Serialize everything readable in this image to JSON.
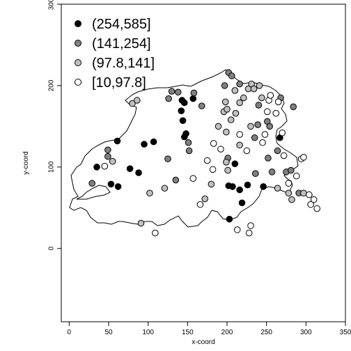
{
  "chart_data": {
    "type": "scatter",
    "title": "",
    "xlabel": "x-coord",
    "ylabel": "y-coord",
    "xlim": [
      -10,
      350
    ],
    "ylim": [
      -90,
      300
    ],
    "xticks": [
      0,
      50,
      100,
      150,
      200,
      250,
      300,
      350
    ],
    "yticks": [
      0,
      100,
      200,
      300
    ],
    "grid": false,
    "legend_position": "top-left",
    "series": [
      {
        "name": "(254,585]",
        "color": "#000000",
        "points": [
          [
            35,
            100
          ],
          [
            61,
            132
          ],
          [
            77,
            98
          ],
          [
            88,
            93
          ],
          [
            95,
            128
          ],
          [
            107,
            131
          ],
          [
            53,
            79
          ],
          [
            62,
            76
          ],
          [
            143,
            182
          ],
          [
            157,
            184
          ],
          [
            142,
            169
          ],
          [
            144,
            157
          ],
          [
            148,
            141
          ],
          [
            146,
            137
          ],
          [
            202,
            77
          ],
          [
            207,
            76
          ],
          [
            210,
            104
          ],
          [
            216,
            72
          ],
          [
            219,
            56
          ],
          [
            226,
            78
          ],
          [
            246,
            76
          ],
          [
            203,
            36
          ],
          [
            267,
            136
          ],
          [
            146,
            179
          ]
        ]
      },
      {
        "name": "(141,254]",
        "color": "#808080",
        "points": [
          [
            49,
            121
          ],
          [
            49,
            113
          ],
          [
            29,
            80
          ],
          [
            125,
            110
          ],
          [
            126,
            184
          ],
          [
            130,
            193
          ],
          [
            138,
            192
          ],
          [
            151,
            130
          ],
          [
            152,
            120
          ],
          [
            135,
            84
          ],
          [
            168,
            175
          ],
          [
            202,
            216
          ],
          [
            206,
            212
          ],
          [
            216,
            202
          ],
          [
            197,
            200
          ],
          [
            235,
            136
          ],
          [
            239,
            152
          ],
          [
            240,
            176
          ],
          [
            251,
            156
          ],
          [
            254,
            150
          ],
          [
            252,
            111
          ],
          [
            257,
            94
          ],
          [
            236,
            92
          ],
          [
            264,
            120
          ],
          [
            275,
            94
          ],
          [
            281,
            96
          ],
          [
            284,
            174
          ],
          [
            268,
            185
          ],
          [
            291,
            68
          ],
          [
            201,
            111
          ],
          [
            158,
            191
          ]
        ]
      },
      {
        "name": "(97.8,141]",
        "color": "#c0c0c0",
        "points": [
          [
            55,
            107
          ],
          [
            80,
            178
          ],
          [
            86,
            182
          ],
          [
            102,
            68
          ],
          [
            121,
            74
          ],
          [
            91,
            31
          ],
          [
            189,
            150
          ],
          [
            196,
            168
          ],
          [
            200,
            171
          ],
          [
            211,
            166
          ],
          [
            199,
            143
          ],
          [
            205,
            158
          ],
          [
            216,
            179
          ],
          [
            216,
            127
          ],
          [
            199,
            106
          ],
          [
            201,
            96
          ],
          [
            221,
            185
          ],
          [
            227,
            196
          ],
          [
            231,
            202
          ],
          [
            241,
            200
          ],
          [
            230,
            150
          ],
          [
            244,
            185
          ],
          [
            264,
            74
          ],
          [
            278,
            68
          ],
          [
            282,
            60
          ],
          [
            297,
            68
          ],
          [
            172,
            61
          ],
          [
            180,
            79
          ],
          [
            198,
            180
          ],
          [
            210,
            194
          ],
          [
            234,
            196
          ]
        ]
      },
      {
        "name": "[10,97.8]",
        "color": "#ffffff",
        "points": [
          [
            45,
            101
          ],
          [
            109,
            19
          ],
          [
            157,
            86
          ],
          [
            166,
            54
          ],
          [
            175,
            108
          ],
          [
            183,
            129
          ],
          [
            192,
            122
          ],
          [
            182,
            97
          ],
          [
            225,
            120
          ],
          [
            216,
            140
          ],
          [
            213,
            23
          ],
          [
            230,
            28
          ],
          [
            228,
            19
          ],
          [
            245,
            130
          ],
          [
            251,
            168
          ],
          [
            253,
            182
          ],
          [
            262,
            166
          ],
          [
            265,
            180
          ],
          [
            270,
            142
          ],
          [
            272,
            114
          ],
          [
            288,
            89
          ],
          [
            294,
            110
          ],
          [
            297,
            112
          ],
          [
            304,
            66
          ],
          [
            310,
            60
          ],
          [
            314,
            49
          ],
          [
            306,
            54
          ],
          [
            278,
            80
          ],
          [
            255,
            188
          ],
          [
            248,
            140
          ]
        ]
      }
    ]
  }
}
